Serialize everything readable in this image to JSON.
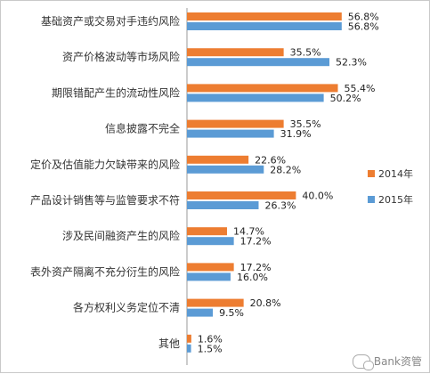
{
  "chart_data": {
    "type": "bar",
    "orientation": "horizontal",
    "categories": [
      "基础资产或交易对手违约风险",
      "资产价格波动等市场风险",
      "期限错配产生的流动性风险",
      "信息披露不完全",
      "定价及估值能力欠缺带来的风险",
      "产品设计销售等与监管要求不符",
      "涉及民间融资产生的风险",
      "表外资产隔离不充分衍生的风险",
      "各方权利义务定位不清",
      "其他"
    ],
    "series": [
      {
        "name": "2014年",
        "color": "#ED7D31",
        "values": [
          56.8,
          35.5,
          55.4,
          35.5,
          22.6,
          40.0,
          14.7,
          17.2,
          20.8,
          1.6
        ],
        "labels": [
          "56.8%",
          "35.5%",
          "55.4%",
          "35.5%",
          "22.6%",
          "40.0%",
          "14.7%",
          "17.2%",
          "20.8%",
          "1.6%"
        ]
      },
      {
        "name": "2015年",
        "color": "#5B9BD5",
        "values": [
          56.8,
          52.3,
          50.2,
          31.9,
          28.2,
          26.3,
          17.2,
          16.0,
          9.5,
          1.5
        ],
        "labels": [
          "56.8%",
          "52.3%",
          "50.2%",
          "31.9%",
          "28.2%",
          "26.3%",
          "17.2%",
          "16.0%",
          "9.5%",
          "1.5%"
        ]
      }
    ],
    "xlim": [
      0,
      60
    ],
    "grid": false,
    "legend_position": "right"
  },
  "watermark": "Bank资管"
}
